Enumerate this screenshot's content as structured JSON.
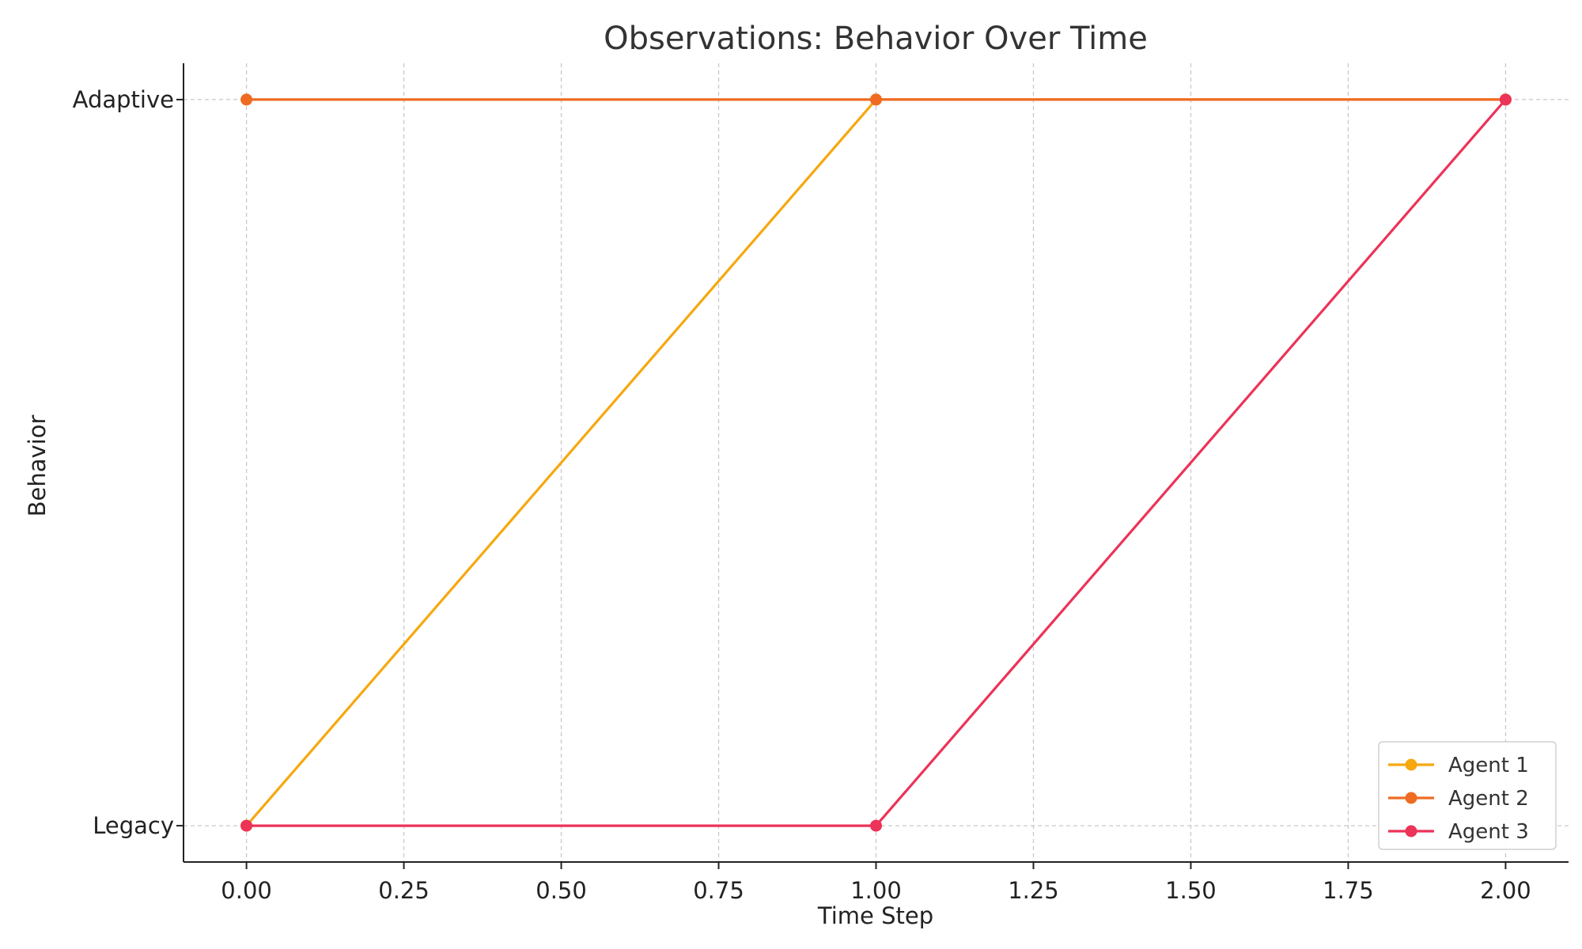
{
  "chart_data": {
    "type": "line",
    "title": "Observations: Behavior Over Time",
    "xlabel": "Time Step",
    "ylabel": "Behavior",
    "x": [
      0,
      1,
      2
    ],
    "xlim": [
      -0.1,
      2.1
    ],
    "xticks": [
      0,
      0.25,
      0.5,
      0.75,
      1,
      1.25,
      1.5,
      1.75,
      2
    ],
    "xtick_labels": [
      "0.00",
      "0.25",
      "0.50",
      "0.75",
      "1.00",
      "1.25",
      "1.50",
      "1.75",
      "2.00"
    ],
    "categories_y": [
      "Legacy",
      "Adaptive"
    ],
    "ylim": [
      -0.05,
      1.05
    ],
    "series": [
      {
        "name": "Agent 1",
        "values": [
          "Legacy",
          "Adaptive",
          "Adaptive"
        ],
        "color": "#f5a80f"
      },
      {
        "name": "Agent 2",
        "values": [
          "Adaptive",
          "Adaptive",
          "Adaptive"
        ],
        "color": "#ef6b22"
      },
      {
        "name": "Agent 3",
        "values": [
          "Legacy",
          "Legacy",
          "Adaptive"
        ],
        "color": "#ec3358"
      }
    ],
    "grid": "vertical and horizontal dashed",
    "legend_position": "lower-right"
  }
}
